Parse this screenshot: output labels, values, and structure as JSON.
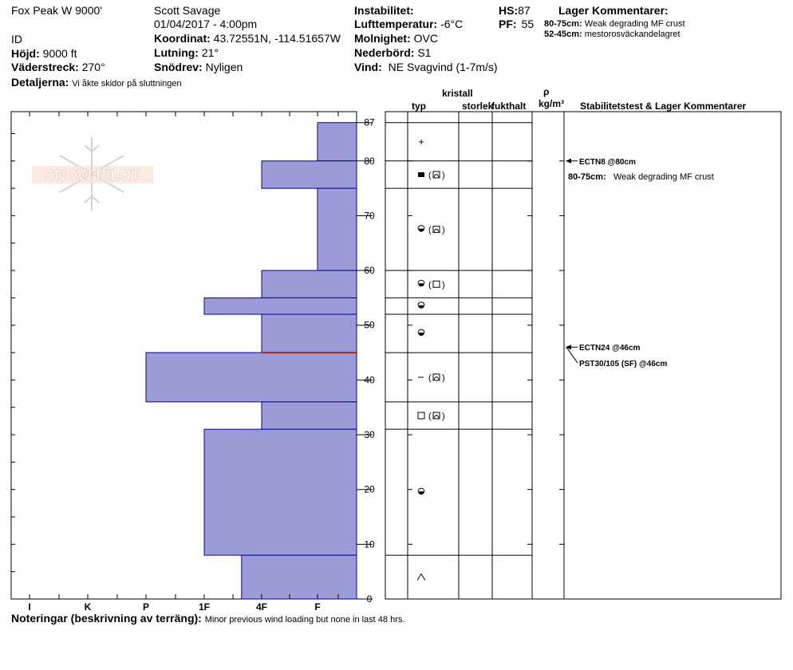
{
  "header": {
    "site": "Fox Peak W 9000'",
    "id_label": "ID",
    "elevation": {
      "label": "Höjd:",
      "value": "9000 ft"
    },
    "aspect": {
      "label": "Väderstreck:",
      "value": "270°"
    },
    "details": {
      "label": "Detaljerna:",
      "value": "Vi åkte skidor på sluttningen"
    },
    "observer": "Scott Savage",
    "datetime": "01/04/2017 - 4:00pm",
    "coordinates": {
      "label": "Koordinat:",
      "value": "43.72551N, -114.51657W"
    },
    "slope": {
      "label": "Lutning:",
      "value": "21°"
    },
    "snowdrift": {
      "label": "Snödrev:",
      "value": "Nyligen"
    },
    "instability": {
      "label": "Instabilitet:",
      "value": ""
    },
    "air_temp": {
      "label": "Lufttemperatur:",
      "value": "-6°C"
    },
    "cloudiness": {
      "label": "Molnighet:",
      "value": "OVC"
    },
    "precipitation": {
      "label": "Nederbörd:",
      "value": "S1"
    },
    "wind": {
      "label": "Vind:",
      "value": "NE Svagvind (1-7m/s)"
    },
    "hs": {
      "label": "HS:",
      "value": "87"
    },
    "pf": {
      "label": "PF:",
      "value": "55"
    },
    "layer_comments_title": "Lager Kommentarer:",
    "layer_comments": [
      {
        "range": "80-75cm:",
        "text": "Weak degrading MF crust"
      },
      {
        "range": "52-45cm:",
        "text": "mestorosväckandelagret"
      }
    ]
  },
  "logo_text": "SNOW PILOT",
  "columns": {
    "crystal": "kristall",
    "type": "typ",
    "size": "storlek",
    "moisture": "fukthalt",
    "rho": "ρ",
    "density_unit": "kg/m³",
    "stability": "Stabilitetstest & Lager Kommentarer"
  },
  "chart_data": {
    "type": "bar",
    "orientation": "horizontal",
    "title": "",
    "ylabel": "",
    "ylim": [
      0,
      87
    ],
    "y_ticks": [
      0,
      10,
      20,
      30,
      40,
      50,
      60,
      70,
      80,
      87
    ],
    "x_categories": [
      "I",
      "K",
      "P",
      "1F",
      "4F",
      "F"
    ],
    "hardness_scale_note": "F = 1 (softest), 4F = 2, 1F = 3, P = 4, K = 5, I = 6",
    "layers": [
      {
        "top": 87,
        "bottom": 80,
        "hardness": "F",
        "hardness_value": 1
      },
      {
        "top": 80,
        "bottom": 75,
        "hardness": "4F",
        "hardness_value": 2
      },
      {
        "top": 75,
        "bottom": 60,
        "hardness": "F",
        "hardness_value": 1
      },
      {
        "top": 60,
        "bottom": 55,
        "hardness": "4F",
        "hardness_value": 2
      },
      {
        "top": 55,
        "bottom": 52,
        "hardness": "1F",
        "hardness_value": 3
      },
      {
        "top": 52,
        "bottom": 45,
        "hardness": "4F",
        "hardness_value": 2
      },
      {
        "top": 45,
        "bottom": 36,
        "hardness": "P",
        "hardness_value": 4
      },
      {
        "top": 36,
        "bottom": 31,
        "hardness": "4F",
        "hardness_value": 2
      },
      {
        "top": 31,
        "bottom": 8,
        "hardness": "1F",
        "hardness_value": 3
      },
      {
        "top": 8,
        "bottom": 0,
        "hardness": "1F-4F",
        "hardness_value": 2.35
      }
    ],
    "weak_layer_marker_height": 45,
    "colors": {
      "bar_fill": "#9B9BD8",
      "bar_edge": "#0000A0",
      "weak_layer": "#B22222"
    }
  },
  "crystals": [
    {
      "height": 83.5,
      "type": "+",
      "secondary": ""
    },
    {
      "height": 77.5,
      "type": "melt-freeze crust",
      "secondary": "faceted rounded"
    },
    {
      "height": 67.5,
      "type": "rounded-faceted",
      "secondary": "faceted rounded"
    },
    {
      "height": 57.5,
      "type": "rounded-faceted",
      "secondary": "faceted"
    },
    {
      "height": 53.5,
      "type": "rounded-faceted",
      "secondary": ""
    },
    {
      "height": 48.5,
      "type": "rounded-faceted",
      "secondary": ""
    },
    {
      "height": 40.5,
      "type": "−",
      "secondary": "faceted rounded"
    },
    {
      "height": 33.5,
      "type": "faceted",
      "secondary": "faceted rounded"
    },
    {
      "height": 19.5,
      "type": "rounded-faceted",
      "secondary": ""
    },
    {
      "height": 4,
      "type": "depth hoar",
      "secondary": ""
    }
  ],
  "stability_tests": [
    {
      "height": 80,
      "text": "ECTN8 @80cm"
    },
    {
      "height": 46,
      "text": "ECTN24 @46cm"
    },
    {
      "height": 46,
      "text": "PST30/105 (SF) @46cm"
    }
  ],
  "stability_comments": [
    {
      "range": "80-75cm:",
      "text": "Weak degrading MF crust"
    }
  ],
  "footer": {
    "label": "Noteringar (beskrivning av terräng):",
    "text": "Minor previous wind loading but none in last 48 hrs."
  }
}
